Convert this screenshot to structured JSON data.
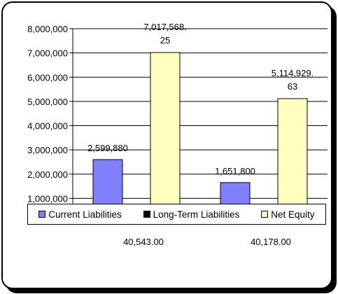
{
  "chart_data": {
    "type": "bar",
    "categories": [
      "40,543.00",
      "40,178.00"
    ],
    "series": [
      {
        "name": "Current Liabilities",
        "color": "#8080ff",
        "values": [
          2599880,
          1651800
        ],
        "labels": [
          "2,599,880",
          "1,651,800"
        ]
      },
      {
        "name": "Long-Term Liabilities",
        "color": "#000000",
        "values": [
          0,
          0
        ],
        "labels": [
          "",
          ""
        ]
      },
      {
        "name": "Net Equity",
        "color": "#ffffc0",
        "values": [
          7017568.25,
          5114929.63
        ],
        "labels": [
          "7,017,568.25",
          "5,114,929.63"
        ]
      }
    ],
    "ylim": [
      0,
      8000000
    ],
    "yticks": [
      "1,000,000",
      "2,000,000",
      "3,000,000",
      "4,000,000",
      "5,000,000",
      "6,000,000",
      "7,000,000",
      "8,000,000"
    ],
    "grid": true,
    "legend_position": "bottom"
  }
}
